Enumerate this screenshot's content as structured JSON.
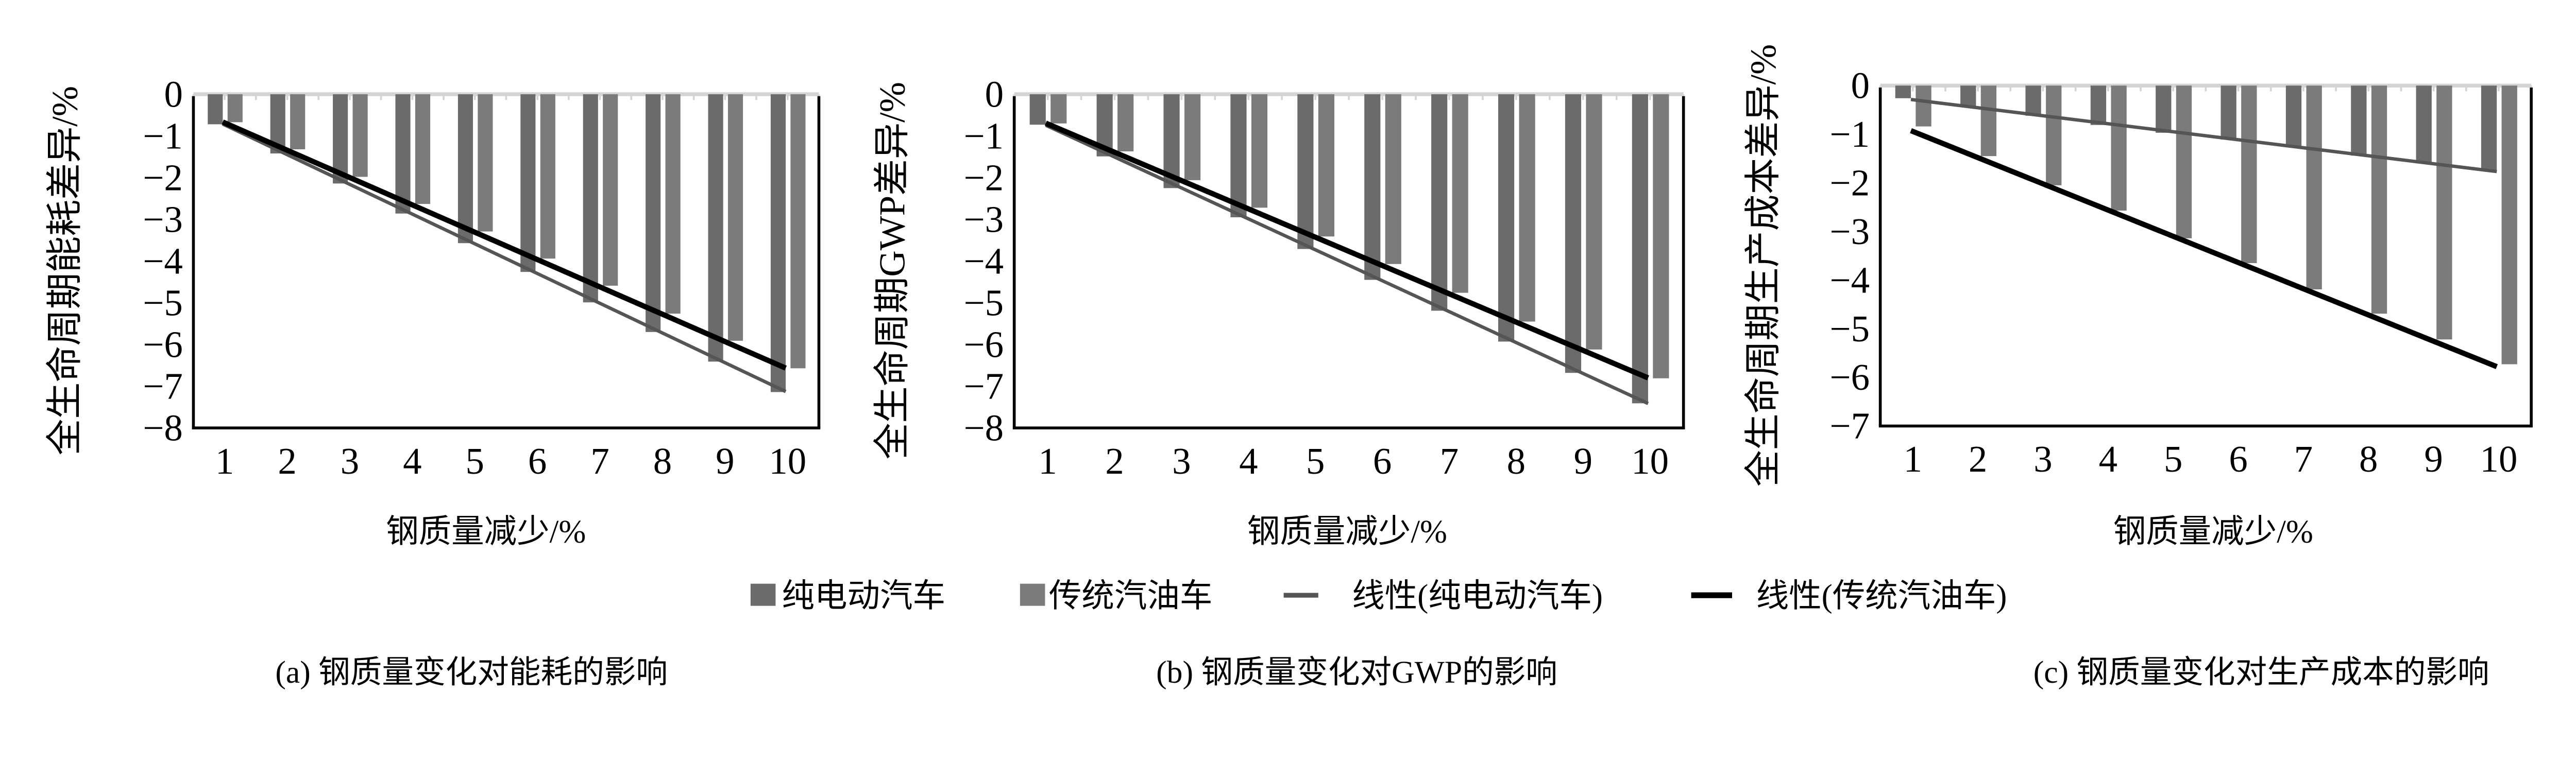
{
  "legend": {
    "ev": "纯电动汽车",
    "conv": "传统汽油车",
    "ev_trend": "线性(纯电动汽车)",
    "conv_trend": "线性(传统汽油车)"
  },
  "colors": {
    "ev": "#6b6b6b",
    "conv": "#7b7b7b",
    "ev_trend": "#555555",
    "conv_trend": "#000000",
    "zero_line": "#d4d4d4"
  },
  "chart_data": [
    {
      "type": "bar",
      "caption": "(a) 钢质量变化对能耗的影响",
      "xlabel": "钢质量减少/%",
      "ylabel": "全生命周期能耗差异/%",
      "categories": [
        "1",
        "2",
        "3",
        "4",
        "5",
        "6",
        "7",
        "8",
        "9",
        "10"
      ],
      "ylim": [
        -8,
        0
      ],
      "yticks": [
        0,
        -1,
        -2,
        -3,
        -4,
        -5,
        -6,
        -7,
        -8
      ],
      "series": [
        {
          "name": "纯电动汽车",
          "values": [
            -0.72,
            -1.42,
            -2.14,
            -2.86,
            -3.57,
            -4.26,
            -4.99,
            -5.7,
            -6.41,
            -7.14
          ]
        },
        {
          "name": "传统汽油车",
          "values": [
            -0.67,
            -1.32,
            -1.98,
            -2.63,
            -3.29,
            -3.94,
            -4.59,
            -5.26,
            -5.91,
            -6.57
          ]
        }
      ],
      "trendlines": [
        "线性(纯电动汽车)",
        "线性(传统汽油车)"
      ],
      "grid": false
    },
    {
      "type": "bar",
      "caption": "(b) 钢质量变化对GWP的影响",
      "xlabel": "钢质量减少/%",
      "ylabel": "全生命周期GWP差异/%",
      "categories": [
        "1",
        "2",
        "3",
        "4",
        "5",
        "6",
        "7",
        "8",
        "9",
        "10"
      ],
      "ylim": [
        -8,
        0
      ],
      "yticks": [
        0,
        -1,
        -2,
        -3,
        -4,
        -5,
        -6,
        -7,
        -8
      ],
      "series": [
        {
          "name": "纯电动汽车",
          "values": [
            -0.73,
            -1.49,
            -2.25,
            -2.95,
            -3.71,
            -4.45,
            -5.19,
            -5.93,
            -6.68,
            -7.41
          ]
        },
        {
          "name": "传统汽油车",
          "values": [
            -0.7,
            -1.37,
            -2.06,
            -2.72,
            -3.41,
            -4.07,
            -4.76,
            -5.45,
            -6.12,
            -6.81
          ]
        }
      ],
      "trendlines": [
        "线性(纯电动汽车)",
        "线性(传统汽油车)"
      ],
      "grid": false
    },
    {
      "type": "bar",
      "caption": "(c) 钢质量变化对生产成本的影响",
      "xlabel": "钢质量减少/%",
      "ylabel": "全生命周期生产成本差异/%",
      "categories": [
        "1",
        "2",
        "3",
        "4",
        "5",
        "6",
        "7",
        "8",
        "9",
        "10"
      ],
      "ylim": [
        -7,
        0
      ],
      "yticks": [
        0,
        -1,
        -2,
        -3,
        -4,
        -5,
        -6,
        -7
      ],
      "series": [
        {
          "name": "纯电动汽车",
          "values": [
            -0.26,
            -0.44,
            -0.62,
            -0.81,
            -0.97,
            -1.11,
            -1.27,
            -1.44,
            -1.6,
            -1.75
          ]
        },
        {
          "name": "传统汽油车",
          "values": [
            -0.84,
            -1.45,
            -2.05,
            -2.57,
            -3.14,
            -3.65,
            -4.19,
            -4.69,
            -5.22,
            -5.73
          ]
        }
      ],
      "trendlines": [
        "线性(纯电动汽车)",
        "线性(传统汽油车)"
      ],
      "grid": false
    }
  ]
}
